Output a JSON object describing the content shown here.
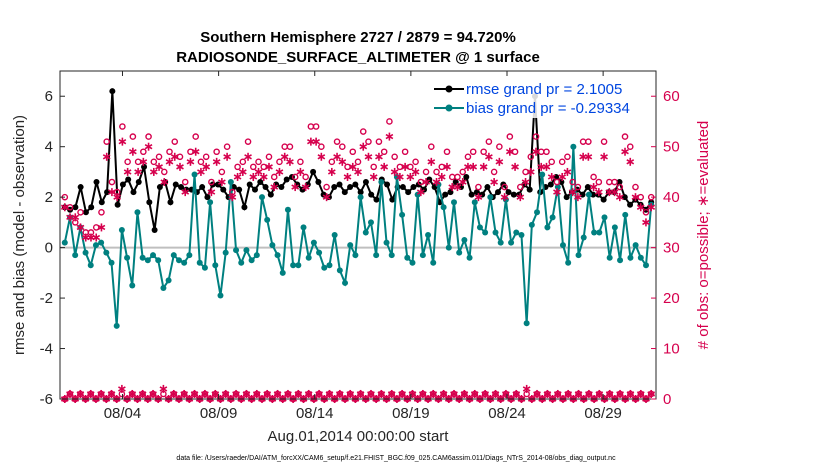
{
  "chart_data": {
    "type": "line",
    "title_line1": "Southern Hemisphere 2727 / 2879 = 94.720%",
    "title_line2": "RADIOSONDE_SURFACE_ALTIMETER @ 1 surface",
    "ylabel": "rmse and bias (model - observation)",
    "ylabel_right": "# of obs: o=possible; ∗=evaluated",
    "xlabel": "Aug.01,2014 00:00:00 start",
    "footnote": "data file: /Users/raeder/DAI/ATM_forcXX/CAM6_setup/f.e21.FHIST_BGC.f09_025.CAM6assim.011/Diags_NTrS_2014-08/obs_diag_output.nc",
    "ylim": [
      -6,
      7
    ],
    "ylim_right": [
      0,
      65
    ],
    "xlim": [
      0.75,
      31.75
    ],
    "x_ticks": [
      4,
      9,
      14,
      19,
      24,
      29
    ],
    "x_tick_labels": [
      "08/04",
      "08/09",
      "08/14",
      "08/19",
      "08/24",
      "08/29"
    ],
    "y_ticks": [
      -6,
      -4,
      -2,
      0,
      2,
      4,
      6
    ],
    "y_ticks_right": [
      0,
      10,
      20,
      30,
      40,
      50,
      60
    ],
    "legend": {
      "rmse_label": "rmse grand pr = 2.1005",
      "bias_label": "bias grand pr = -0.29334",
      "position": "top-right"
    },
    "series": [
      {
        "name": "rmse",
        "color": "#000000",
        "values": [
          1.6,
          1.5,
          1.6,
          2.4,
          1.4,
          1.6,
          2.6,
          1.8,
          2.2,
          6.2,
          1.7,
          2.5,
          2.7,
          2.2,
          2.6,
          3.2,
          1.8,
          0.7,
          2.4,
          2.6,
          1.8,
          2.5,
          2.4,
          2.3,
          2.3,
          2.2,
          2.4,
          2.0,
          2.5,
          2.5,
          2.3,
          2.0,
          2.4,
          2.3,
          1.6,
          2.5,
          2.3,
          2.6,
          2.4,
          2.1,
          2.5,
          2.4,
          2.7,
          2.8,
          2.5,
          2.3,
          2.5,
          3.0,
          2.6,
          2.1,
          2.0,
          2.4,
          2.5,
          2.2,
          2.4,
          2.5,
          2.2,
          2.6,
          2.1,
          1.9,
          2.7,
          2.5,
          1.9,
          2.4,
          2.4,
          2.2,
          2.4,
          2.5,
          2.3,
          2.7,
          2.4,
          1.8,
          2.1,
          2.2,
          2.6,
          2.4,
          2.8,
          2.1,
          2.2,
          2.1,
          2.4,
          2.0,
          2.2,
          2.5,
          2.2,
          2.1,
          2.1,
          2.5,
          2.3,
          6.0,
          2.2,
          2.4,
          2.5,
          2.8,
          2.6,
          2.0,
          2.2,
          2.3,
          2.1,
          2.4,
          2.1,
          2.1,
          1.9,
          2.2,
          2.2,
          2.6,
          2.0,
          1.7,
          1.9,
          1.7,
          1.5,
          1.8
        ]
      },
      {
        "name": "bias",
        "color": "#008080",
        "values": [
          0.2,
          1.2,
          -0.3,
          0.8,
          -0.2,
          -0.7,
          0.1,
          0.2,
          -0.2,
          -0.6,
          -3.1,
          0.7,
          -0.4,
          -1.5,
          1.4,
          -0.4,
          -0.5,
          -0.3,
          -0.5,
          -1.6,
          -1.3,
          -0.3,
          -0.5,
          -0.6,
          -0.3,
          2.9,
          -0.6,
          -0.8,
          1.8,
          -0.7,
          -1.9,
          -0.2,
          2.6,
          -0.1,
          -0.6,
          -0.1,
          -0.5,
          -0.3,
          2.0,
          1.1,
          0.1,
          -0.3,
          -1.0,
          1.5,
          -0.7,
          -0.7,
          0.8,
          -0.4,
          0.2,
          -0.2,
          -0.8,
          -0.7,
          0.5,
          -0.9,
          -1.4,
          0.1,
          -0.3,
          2.0,
          0.6,
          1.0,
          -0.3,
          2.6,
          0.2,
          -0.3,
          2.8,
          1.3,
          -0.4,
          -0.6,
          2.1,
          -0.3,
          0.5,
          -0.6,
          2.5,
          1.6,
          0.0,
          1.8,
          -0.2,
          0.3,
          -0.4,
          1.8,
          0.8,
          0.6,
          2.0,
          0.6,
          0.2,
          1.9,
          0.2,
          0.6,
          0.5,
          -3.0,
          0.9,
          1.4,
          2.9,
          0.8,
          1.2,
          2.4,
          0.1,
          -0.6,
          4.0,
          -0.3,
          0.4,
          2.1,
          0.6,
          0.6,
          1.2,
          -0.4,
          0.8,
          -0.5,
          1.3,
          -0.4,
          0.1,
          -0.4,
          -0.7,
          1.7
        ]
      },
      {
        "name": "possible",
        "color": "#d6004d",
        "marker": "o",
        "values": [
          40,
          38,
          35,
          37,
          33,
          33,
          34,
          37,
          51,
          43,
          41,
          54,
          47,
          52,
          47,
          49,
          52,
          47,
          48,
          45,
          49,
          51,
          48,
          43,
          49,
          52,
          47,
          48,
          43,
          49,
          45,
          50,
          41,
          46,
          47,
          51,
          46,
          47,
          46,
          48,
          44,
          47,
          50,
          50,
          44,
          47,
          44,
          54,
          54,
          50,
          42,
          47,
          51,
          50,
          46,
          49,
          47,
          53,
          51,
          46,
          51,
          49,
          55,
          48,
          46,
          49,
          46,
          47,
          43,
          45,
          50,
          45,
          46,
          49,
          44,
          44,
          45,
          48,
          49,
          42,
          49,
          51,
          45,
          50,
          42,
          52,
          49,
          42,
          45,
          48,
          52,
          49,
          49,
          47,
          43,
          47,
          48,
          43,
          42,
          51,
          51,
          44,
          43,
          51,
          43,
          43,
          42,
          52,
          50,
          42,
          40,
          37,
          40
        ]
      },
      {
        "name": "evaluated",
        "color": "#d6004d",
        "marker": "*",
        "values": [
          38,
          36,
          36,
          34,
          32,
          32,
          32,
          34,
          48,
          41,
          40,
          51,
          45,
          49,
          45,
          47,
          50,
          45,
          46,
          43,
          47,
          48,
          46,
          41,
          47,
          49,
          45,
          46,
          41,
          47,
          43,
          48,
          40,
          44,
          45,
          48,
          44,
          45,
          44,
          46,
          42,
          45,
          48,
          47,
          42,
          45,
          42,
          51,
          51,
          48,
          40,
          45,
          48,
          47,
          44,
          46,
          45,
          50,
          48,
          44,
          48,
          46,
          52,
          45,
          44,
          46,
          44,
          45,
          41,
          43,
          47,
          43,
          44,
          46,
          42,
          42,
          43,
          46,
          46,
          40,
          46,
          48,
          43,
          47,
          40,
          49,
          46,
          40,
          43,
          45,
          49,
          46,
          46,
          44,
          41,
          44,
          45,
          41,
          40,
          48,
          48,
          42,
          41,
          48,
          41,
          41,
          40,
          49,
          47,
          40,
          38,
          35,
          38
        ]
      },
      {
        "name": "possible_lower",
        "color": "#d6004d",
        "marker": "o",
        "values": [
          0,
          1,
          0,
          1,
          0,
          1,
          0,
          1,
          0,
          1,
          0,
          1,
          0,
          1,
          0,
          1,
          0,
          1,
          0,
          1,
          0,
          1,
          0,
          1,
          0,
          1,
          0,
          1,
          0,
          1,
          0,
          1,
          0,
          1,
          0,
          1,
          0,
          1,
          0,
          1,
          0,
          1,
          0,
          1,
          0,
          1,
          0,
          1,
          0,
          1,
          0,
          1,
          0,
          1,
          0,
          1,
          0,
          1,
          0,
          1,
          0,
          1,
          0,
          1,
          0,
          1,
          0,
          1,
          0,
          1,
          0,
          1,
          0,
          1,
          0,
          1,
          0,
          1,
          0,
          1,
          0,
          1,
          0,
          1,
          0,
          1,
          0,
          1,
          0,
          1,
          0,
          1,
          0,
          1,
          0,
          1,
          0,
          1,
          0,
          1,
          0,
          1,
          0,
          1,
          0,
          1,
          0,
          1,
          0,
          1,
          0,
          1,
          0,
          1
        ]
      },
      {
        "name": "evaluated_lower",
        "color": "#d6004d",
        "marker": "*",
        "values": [
          0,
          1,
          0,
          1,
          0,
          1,
          0,
          1,
          0,
          1,
          0,
          2,
          0,
          1,
          0,
          1,
          0,
          1,
          0,
          2,
          0,
          1,
          0,
          1,
          0,
          1,
          0,
          1,
          0,
          1,
          0,
          1,
          0,
          1,
          0,
          1,
          0,
          1,
          0,
          1,
          0,
          1,
          0,
          1,
          0,
          1,
          0,
          1,
          0,
          1,
          0,
          1,
          0,
          1,
          0,
          1,
          0,
          1,
          0,
          1,
          0,
          1,
          0,
          1,
          0,
          1,
          0,
          1,
          0,
          1,
          0,
          1,
          0,
          1,
          0,
          1,
          0,
          1,
          0,
          1,
          0,
          1,
          0,
          1,
          0,
          1,
          0,
          1,
          0,
          2,
          0,
          1,
          0,
          1,
          0,
          1,
          0,
          1,
          0,
          1,
          0,
          1,
          0,
          1,
          0,
          1,
          0,
          1,
          0,
          1,
          0,
          1,
          0,
          1
        ]
      }
    ]
  }
}
